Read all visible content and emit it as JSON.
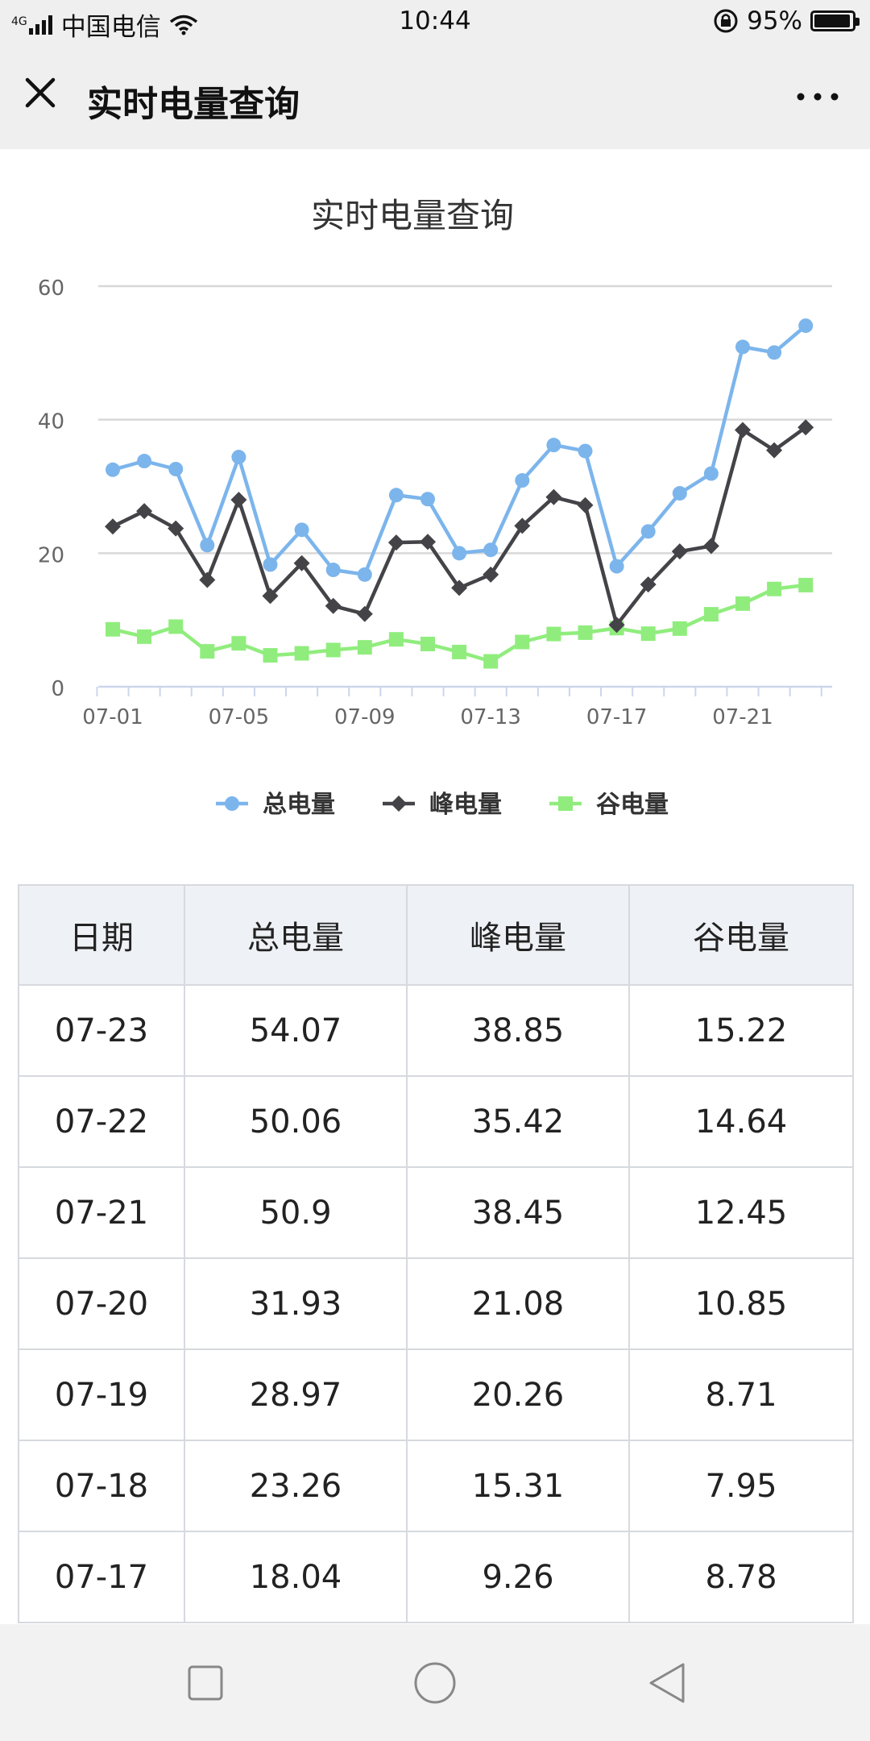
{
  "status_bar": {
    "signal": "4G",
    "carrier": "中国电信",
    "time": "10:44",
    "battery": "95%"
  },
  "header": {
    "title": "实时电量查询"
  },
  "chart_data": {
    "type": "line",
    "title": "实时电量查询",
    "x": [
      "07-01",
      "07-02",
      "07-03",
      "07-04",
      "07-05",
      "07-06",
      "07-07",
      "07-08",
      "07-09",
      "07-10",
      "07-11",
      "07-12",
      "07-13",
      "07-14",
      "07-15",
      "07-16",
      "07-17",
      "07-18",
      "07-19",
      "07-20",
      "07-21",
      "07-22",
      "07-23"
    ],
    "x_tick_labels": [
      "07-01",
      "07-05",
      "07-09",
      "07-13",
      "07-17",
      "07-21"
    ],
    "y_ticks": [
      0,
      20,
      40,
      60
    ],
    "ylim": [
      0,
      60
    ],
    "grid": true,
    "legend_position": "bottom",
    "series": [
      {
        "name": "总电量",
        "color": "#7cb5ec",
        "marker": "circle",
        "values": [
          32.5,
          33.8,
          32.6,
          21.2,
          34.4,
          18.3,
          23.5,
          17.5,
          16.8,
          28.7,
          28.1,
          20.0,
          20.5,
          30.9,
          36.2,
          35.3,
          18.04,
          23.26,
          28.97,
          31.93,
          50.9,
          50.06,
          54.07
        ]
      },
      {
        "name": "峰电量",
        "color": "#434348",
        "marker": "diamond",
        "values": [
          24.0,
          26.3,
          23.7,
          16.0,
          28.0,
          13.6,
          18.5,
          12.1,
          10.9,
          21.6,
          21.7,
          14.8,
          16.8,
          24.1,
          28.4,
          27.2,
          9.26,
          15.31,
          20.26,
          21.08,
          38.45,
          35.42,
          38.85
        ]
      },
      {
        "name": "谷电量",
        "color": "#90ed7d",
        "marker": "square",
        "values": [
          8.6,
          7.5,
          9.0,
          5.3,
          6.5,
          4.7,
          5.0,
          5.5,
          5.9,
          7.1,
          6.4,
          5.2,
          3.8,
          6.7,
          7.9,
          8.1,
          8.78,
          7.95,
          8.71,
          10.85,
          12.45,
          14.64,
          15.22
        ]
      }
    ]
  },
  "table": {
    "headers": [
      "日期",
      "总电量",
      "峰电量",
      "谷电量"
    ],
    "rows": [
      [
        "07-23",
        "54.07",
        "38.85",
        "15.22"
      ],
      [
        "07-22",
        "50.06",
        "35.42",
        "14.64"
      ],
      [
        "07-21",
        "50.9",
        "38.45",
        "12.45"
      ],
      [
        "07-20",
        "31.93",
        "21.08",
        "10.85"
      ],
      [
        "07-19",
        "28.97",
        "20.26",
        "8.71"
      ],
      [
        "07-18",
        "23.26",
        "15.31",
        "7.95"
      ],
      [
        "07-17",
        "18.04",
        "9.26",
        "8.78"
      ]
    ]
  },
  "nav_bar": {
    "icons": [
      "recent-apps-icon",
      "home-icon",
      "back-icon"
    ]
  }
}
